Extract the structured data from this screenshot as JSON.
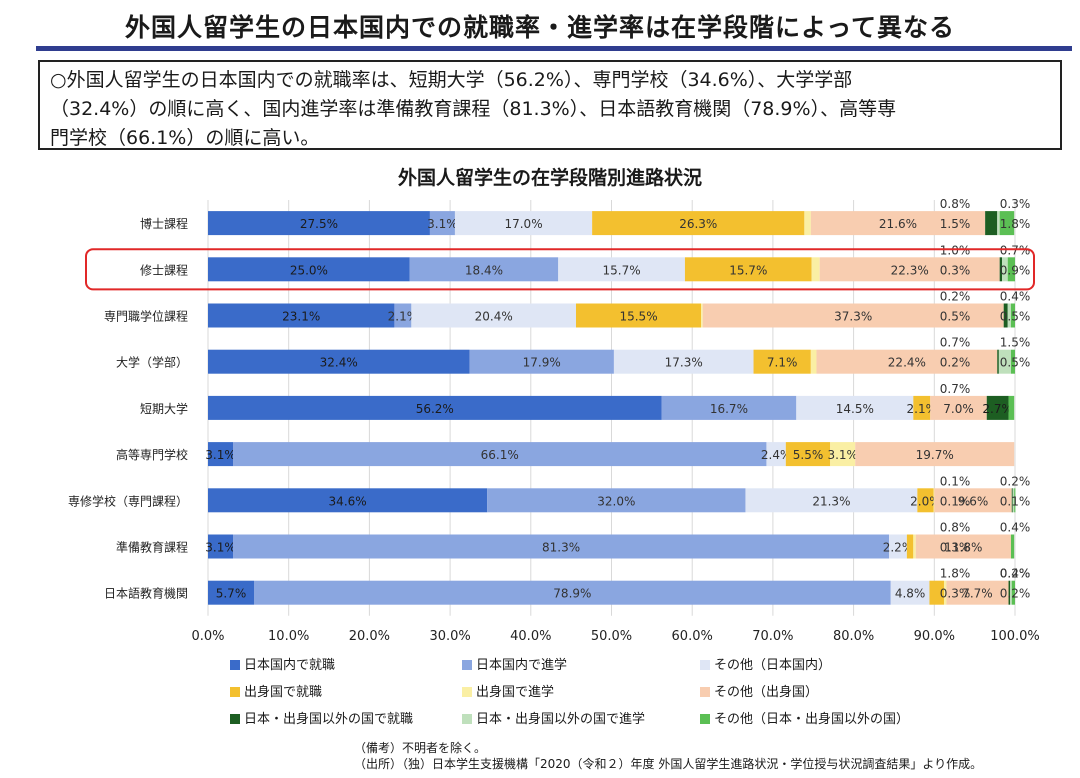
{
  "title": "外国人留学生の日本国内での就職率・進学率は在学段階によって異なる",
  "summary": [
    "○外国人留学生の日本国内での就職率は、短期大学（56.2%）、専門学校（34.6%）、大学学部",
    "（32.4%）の順に高く、国内進学率は準備教育課程（81.3%）、日本語教育機関（78.9%）、高等専",
    "門学校（66.1%）の順に高い。"
  ],
  "notes": {
    "remark": "（備考）不明者を除く。",
    "source": "（出所）（独）日本学生支援機構「2020（令和２）年度 外国人留学生進路状況・学位授与状況調査結果」より作成。"
  },
  "colors": [
    "#3a6bc9",
    "#8aa6e0",
    "#dfe6f5",
    "#f3c02f",
    "#faefa4",
    "#f8cdb0",
    "#1d5e22",
    "#bfe0bc",
    "#5bbf54"
  ],
  "highlight_color": "#e12828",
  "chart_data": {
    "type": "bar",
    "orientation": "horizontal",
    "stacked": true,
    "title": "外国人留学生の在学段階別進路状況",
    "categories": [
      "博士課程",
      "修士課程",
      "専門職学位課程",
      "大学（学部）",
      "短期大学",
      "高等専門学校",
      "専修学校（専門課程）",
      "準備教育課程",
      "日本語教育機関"
    ],
    "highlighted_category": "修士課程",
    "xlim": [
      0,
      100
    ],
    "xticks": [
      "0.0%",
      "10.0%",
      "20.0%",
      "30.0%",
      "40.0%",
      "50.0%",
      "60.0%",
      "70.0%",
      "80.0%",
      "90.0%",
      "100.0%"
    ],
    "grid": true,
    "legend_position": "bottom",
    "series": [
      {
        "name": "日本国内で就職",
        "values": [
          27.5,
          25.0,
          23.1,
          32.4,
          56.2,
          3.1,
          34.6,
          3.1,
          5.7
        ],
        "labels": [
          "27.5%",
          "25.0%",
          "23.1%",
          "32.4%",
          "56.2%",
          "3.1%",
          "34.6%",
          "3.1%",
          "5.7%"
        ]
      },
      {
        "name": "日本国内で進学",
        "values": [
          3.1,
          18.4,
          2.1,
          17.9,
          16.7,
          66.1,
          32.0,
          81.3,
          78.9
        ],
        "labels": [
          "3.1%",
          "18.4%",
          "2.1%",
          "17.9%",
          "16.7%",
          "66.1%",
          "32.0%",
          "81.3%",
          "78.9%"
        ]
      },
      {
        "name": "その他（日本国内）",
        "values": [
          17.0,
          15.7,
          20.4,
          17.3,
          14.5,
          2.4,
          21.3,
          2.2,
          4.8
        ],
        "labels": [
          "17.0%",
          "15.7%",
          "20.4%",
          "17.3%",
          "14.5%",
          "2.4%",
          "21.3%",
          "2.2%",
          "4.8%"
        ]
      },
      {
        "name": "出身国で就職",
        "values": [
          26.3,
          15.7,
          15.5,
          7.1,
          2.1,
          5.5,
          2.0,
          0.8,
          1.8
        ],
        "labels": [
          "26.3%",
          "15.7%",
          "15.5%",
          "7.1%",
          "2.1%",
          "5.5%",
          "2.0%",
          "0.8%",
          "1.8%"
        ]
      },
      {
        "name": "出身国で進学",
        "values": [
          0.8,
          1.0,
          0.2,
          0.7,
          0.0,
          3.1,
          0.1,
          0.3,
          0.3
        ],
        "labels": [
          "0.8%",
          "1.0%",
          "0.2%",
          "0.7%",
          "",
          "3.1%",
          "0.1%",
          "0.3%",
          "0.3%"
        ]
      },
      {
        "name": "その他（出身国）",
        "values": [
          21.6,
          22.3,
          37.3,
          22.4,
          7.0,
          19.7,
          9.6,
          11.8,
          7.7
        ],
        "labels": [
          "21.6%",
          "22.3%",
          "37.3%",
          "22.4%",
          "7.0%",
          "19.7%",
          "9.6%",
          "11.8%",
          "7.7%"
        ]
      },
      {
        "name": "日本・出身国以外の国で就職",
        "values": [
          1.5,
          0.3,
          0.5,
          0.2,
          2.7,
          0.0,
          0.1,
          0.0,
          0.2
        ],
        "labels": [
          "1.5%",
          "0.3%",
          "0.5%",
          "0.2%",
          "2.7%",
          "",
          "0.1%",
          "",
          "0.2%"
        ]
      },
      {
        "name": "日本・出身国以外の国で進学",
        "values": [
          0.3,
          0.7,
          0.4,
          1.5,
          0.0,
          0.0,
          0.2,
          0.0,
          0.2
        ],
        "labels": [
          "0.3%",
          "0.7%",
          "0.4%",
          "1.5%",
          "",
          "",
          "0.2%",
          "",
          "0.2%"
        ]
      },
      {
        "name": "その他（日本・出身国以外の国）",
        "values": [
          1.8,
          0.9,
          0.5,
          0.5,
          0.7,
          0.0,
          0.1,
          0.4,
          0.4
        ],
        "labels": [
          "1.8%",
          "0.9%",
          "0.5%",
          "0.5%",
          "0.7%",
          "",
          "0.1%",
          "0.4%",
          "0.4%"
        ]
      }
    ]
  }
}
